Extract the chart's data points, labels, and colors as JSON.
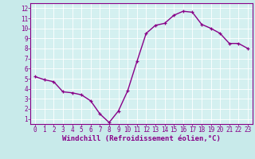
{
  "x": [
    0,
    1,
    2,
    3,
    4,
    5,
    6,
    7,
    8,
    9,
    10,
    11,
    12,
    13,
    14,
    15,
    16,
    17,
    18,
    19,
    20,
    21,
    22,
    23
  ],
  "y": [
    5.2,
    4.9,
    4.7,
    3.7,
    3.6,
    3.4,
    2.8,
    1.5,
    0.65,
    1.8,
    3.8,
    6.7,
    9.5,
    10.3,
    10.5,
    11.3,
    11.7,
    11.6,
    10.4,
    10.0,
    9.5,
    8.5,
    8.5,
    8.0
  ],
  "line_color": "#880088",
  "marker_color": "#880088",
  "bg_color": "#c8eaea",
  "plot_bg_color": "#d4f0f0",
  "grid_color": "#b0d8d8",
  "xlabel": "Windchill (Refroidissement éolien,°C)",
  "xlim": [
    -0.5,
    23.5
  ],
  "ylim": [
    0.5,
    12.5
  ],
  "xticks": [
    0,
    1,
    2,
    3,
    4,
    5,
    6,
    7,
    8,
    9,
    10,
    11,
    12,
    13,
    14,
    15,
    16,
    17,
    18,
    19,
    20,
    21,
    22,
    23
  ],
  "yticks": [
    1,
    2,
    3,
    4,
    5,
    6,
    7,
    8,
    9,
    10,
    11,
    12
  ],
  "label_color": "#880088",
  "tick_label_color": "#880088",
  "spine_color": "#880088",
  "font_size": 5.5,
  "xlabel_font_size": 6.5,
  "line_width": 1.0,
  "marker_size": 3.5
}
